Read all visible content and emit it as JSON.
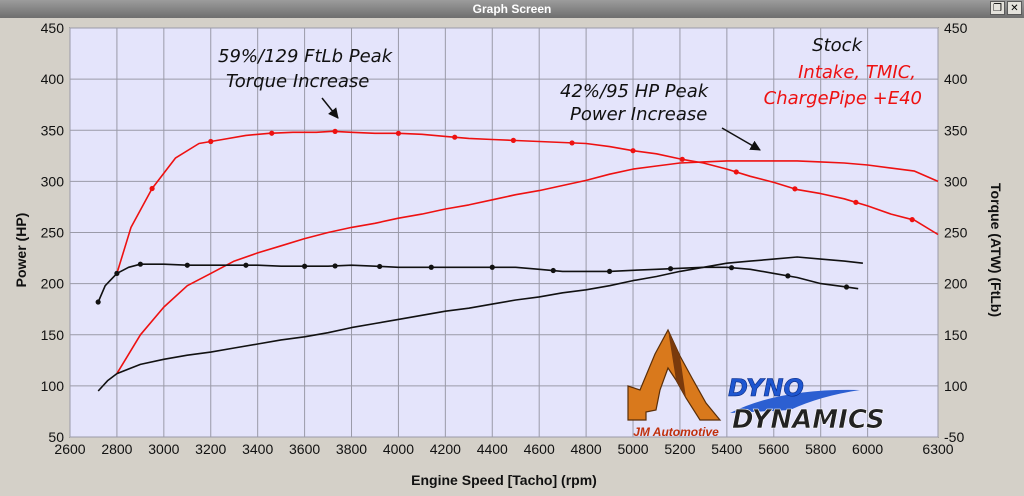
{
  "window": {
    "title": "Graph Screen",
    "restore_glyph": "❐",
    "close_glyph": "✕"
  },
  "branding": {
    "jm_logo_text": "JM Automotive",
    "dyno_logo_line1": "DYNO",
    "dyno_logo_line2": "DYNAMICS"
  },
  "chart_data": {
    "type": "line",
    "title": "",
    "xlabel": "Engine Speed [Tacho] (rpm)",
    "ylabel": "Power (HP)",
    "y2label": "Torque (ATW) (FtLb)",
    "xlim": [
      2600,
      6300
    ],
    "ylim": [
      50,
      450
    ],
    "y2lim": [
      -50,
      450
    ],
    "xticks": [
      2600,
      2800,
      3000,
      3200,
      3400,
      3600,
      3800,
      4000,
      4200,
      4400,
      4600,
      4800,
      5000,
      5200,
      5400,
      5600,
      5800,
      6000,
      6300
    ],
    "yticks": [
      50,
      100,
      150,
      200,
      250,
      300,
      350,
      400,
      450
    ],
    "y2ticks": [
      -50,
      100,
      150,
      200,
      250,
      300,
      350,
      400,
      450
    ],
    "grid": true,
    "background": "#e4e4fb",
    "legend": {
      "position": "top-right",
      "entries": [
        {
          "label": "Stock",
          "color": "#111111"
        },
        {
          "label": "Intake, TMIC,",
          "color": "#ee1111"
        },
        {
          "label": "ChargePipe +E40",
          "color": "#ee1111"
        }
      ]
    },
    "annotations": [
      {
        "line1": "59%/129 FtLb Peak",
        "line2": "Torque Increase",
        "arrow_to": {
          "x": 3720,
          "y": 347
        }
      },
      {
        "line1": "42%/95 HP Peak",
        "line2": "Power Increase",
        "arrow_to": {
          "x": 5520,
          "y": 320
        }
      }
    ],
    "series": [
      {
        "name": "Intake, TMIC, ChargePipe +E40 - Torque",
        "axis": "right",
        "color": "#ee1111",
        "x": [
          2800,
          2860,
          2950,
          3050,
          3150,
          3250,
          3350,
          3450,
          3550,
          3650,
          3720,
          3800,
          3900,
          4000,
          4100,
          4200,
          4300,
          4400,
          4500,
          4600,
          4700,
          4800,
          4900,
          5000,
          5100,
          5200,
          5300,
          5400,
          5500,
          5600,
          5700,
          5800,
          5900,
          6000,
          6100,
          6200,
          6300
        ],
        "y": [
          210,
          255,
          293,
          323,
          337,
          341,
          345,
          347,
          348,
          348,
          349,
          348,
          347,
          347,
          346,
          344,
          342,
          341,
          340,
          339,
          338,
          337,
          334,
          330,
          327,
          322,
          318,
          312,
          305,
          299,
          292,
          288,
          283,
          276,
          268,
          262,
          248
        ],
        "markers": [
          2950,
          3200,
          3460,
          3730,
          4000,
          4240,
          4490,
          4740,
          5000,
          5210,
          5440,
          5690,
          5950,
          6190
        ]
      },
      {
        "name": "Intake, TMIC, ChargePipe +E40 - Power",
        "axis": "left",
        "color": "#ee1111",
        "x": [
          2800,
          2900,
          3000,
          3100,
          3200,
          3300,
          3400,
          3500,
          3600,
          3700,
          3800,
          3900,
          4000,
          4100,
          4200,
          4300,
          4400,
          4500,
          4600,
          4700,
          4800,
          4900,
          5000,
          5100,
          5200,
          5300,
          5400,
          5500,
          5600,
          5700,
          5800,
          5900,
          6000,
          6100,
          6200,
          6300
        ],
        "y": [
          112,
          150,
          177,
          198,
          210,
          222,
          230,
          237,
          244,
          250,
          255,
          259,
          264,
          268,
          273,
          277,
          282,
          287,
          291,
          296,
          301,
          307,
          312,
          315,
          318,
          319,
          320,
          320,
          320,
          320,
          319,
          318,
          316,
          313,
          310,
          300
        ]
      },
      {
        "name": "Stock - Torque",
        "axis": "right",
        "color": "#111111",
        "x": [
          2720,
          2750,
          2800,
          2850,
          2900,
          3000,
          3100,
          3200,
          3300,
          3400,
          3500,
          3600,
          3700,
          3800,
          3900,
          4000,
          4100,
          4200,
          4300,
          4400,
          4500,
          4600,
          4700,
          4800,
          4900,
          5000,
          5100,
          5200,
          5300,
          5400,
          5500,
          5600,
          5700,
          5800,
          5900,
          5960
        ],
        "y": [
          182,
          198,
          210,
          216,
          219,
          219,
          218,
          218,
          218,
          218,
          217,
          217,
          217,
          218,
          217,
          216,
          216,
          216,
          216,
          216,
          216,
          214,
          212,
          212,
          212,
          213,
          214,
          215,
          216,
          216,
          214,
          210,
          206,
          200,
          197,
          195
        ],
        "markers": [
          2720,
          2800,
          2900,
          3100,
          3350,
          3600,
          3730,
          3920,
          4140,
          4400,
          4660,
          4900,
          5160,
          5420,
          5660,
          5910
        ]
      },
      {
        "name": "Stock - Power",
        "axis": "left",
        "color": "#111111",
        "x": [
          2720,
          2760,
          2800,
          2900,
          3000,
          3100,
          3200,
          3300,
          3400,
          3500,
          3600,
          3700,
          3800,
          3900,
          4000,
          4100,
          4200,
          4300,
          4400,
          4500,
          4600,
          4700,
          4800,
          4900,
          5000,
          5100,
          5200,
          5300,
          5400,
          5500,
          5600,
          5700,
          5800,
          5900,
          5980
        ],
        "y": [
          95,
          105,
          112,
          121,
          126,
          130,
          133,
          137,
          141,
          145,
          148,
          152,
          157,
          161,
          165,
          169,
          173,
          176,
          180,
          184,
          187,
          191,
          194,
          198,
          203,
          207,
          212,
          216,
          220,
          222,
          224,
          226,
          224,
          222,
          220
        ]
      }
    ]
  }
}
